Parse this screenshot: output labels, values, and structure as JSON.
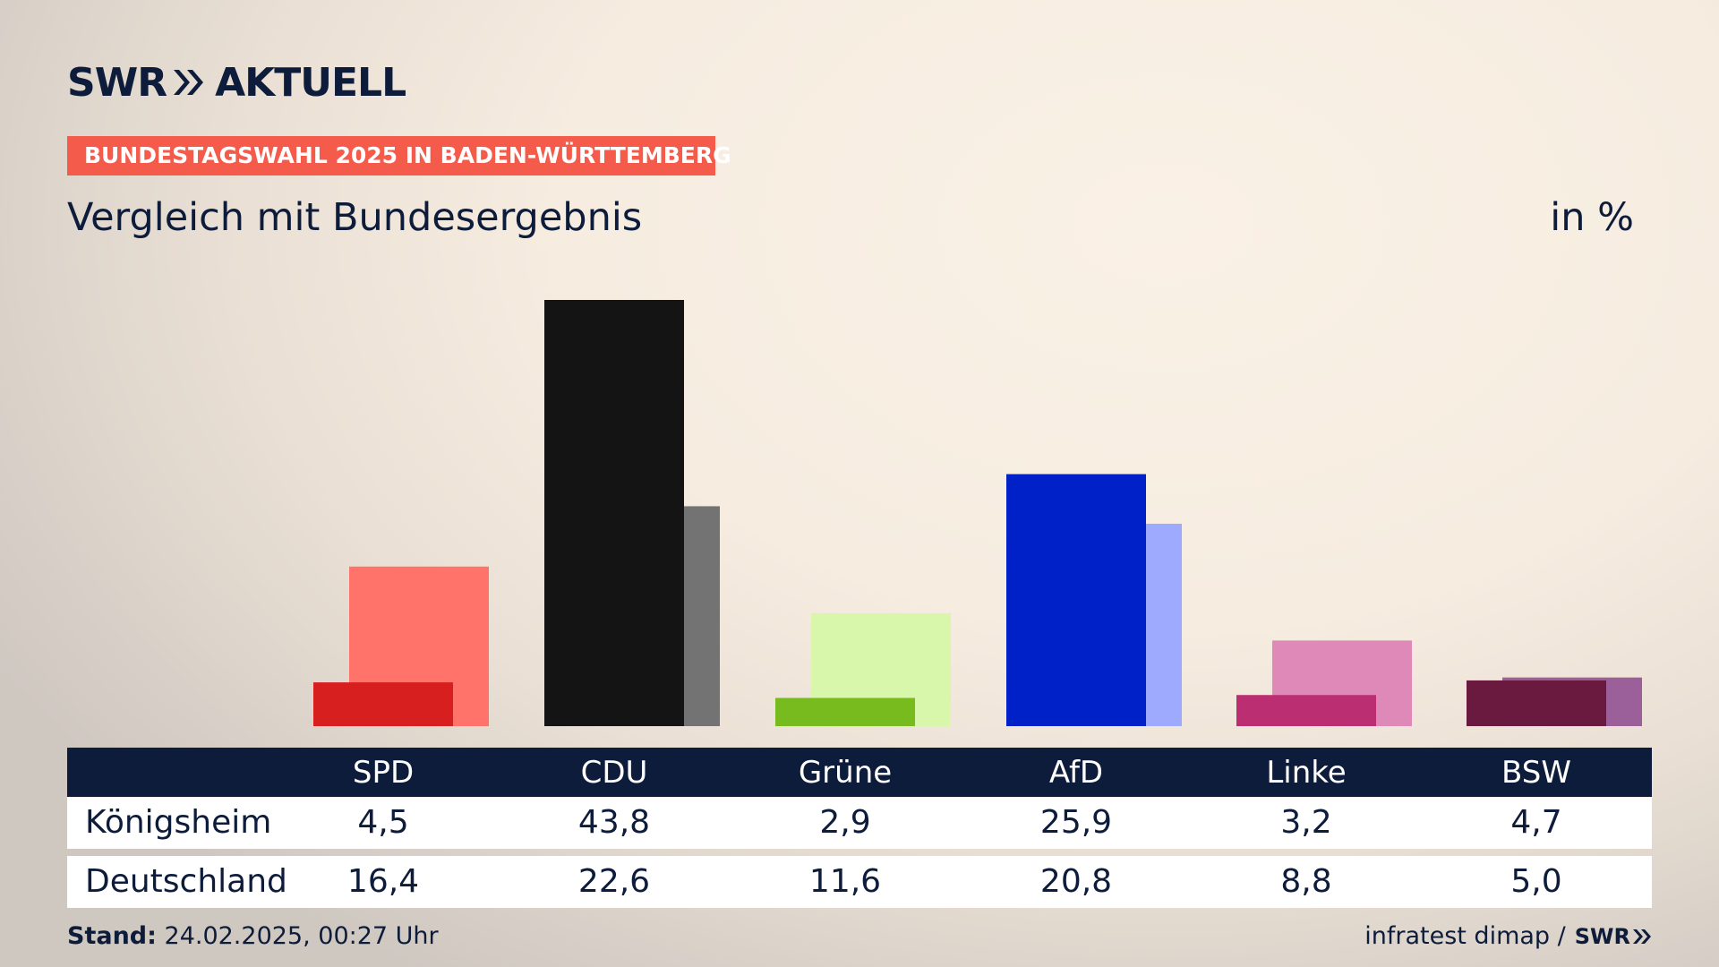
{
  "brand": {
    "logo_text_left": "SWR",
    "logo_text_right": "AKTUELL",
    "footer_logo": "SWR"
  },
  "kicker": "BUNDESTAGSWAHL 2025 IN BADEN-WÜRTTEMBERG",
  "headline": "Vergleich mit Bundesergebnis",
  "unit": "in %",
  "table": {
    "rows": [
      {
        "label": "Königsheim"
      },
      {
        "label": "Deutschland"
      }
    ]
  },
  "footer": {
    "stand_label": "Stand:",
    "stand_value": "24.02.2025, 00:27 Uhr",
    "source": "infratest dimap /"
  },
  "chart_data": {
    "type": "bar",
    "title": "Vergleich mit Bundesergebnis",
    "unit": "in %",
    "categories": [
      "SPD",
      "CDU",
      "Grüne",
      "AfD",
      "Linke",
      "BSW"
    ],
    "series": [
      {
        "name": "Königsheim",
        "values": [
          4.5,
          43.8,
          2.9,
          25.9,
          3.2,
          4.7
        ],
        "values_text": [
          "4,5",
          "43,8",
          "2,9",
          "25,9",
          "3,2",
          "4,7"
        ],
        "colors": [
          "#d71f1f",
          "#141414",
          "#78bb1e",
          "#0021c8",
          "#bb2f72",
          "#6b1a3f"
        ]
      },
      {
        "name": "Deutschland",
        "values": [
          16.4,
          22.6,
          11.6,
          20.8,
          8.8,
          5.0
        ],
        "values_text": [
          "16,4",
          "22,6",
          "11,6",
          "20,8",
          "8,8",
          "5,0"
        ],
        "colors": [
          "#ff736a",
          "#737373",
          "#d9f7ab",
          "#9eaafe",
          "#de89b8",
          "#9b6099"
        ]
      }
    ],
    "ylim": [
      0,
      45
    ],
    "grid": false,
    "legend": "table-below"
  }
}
